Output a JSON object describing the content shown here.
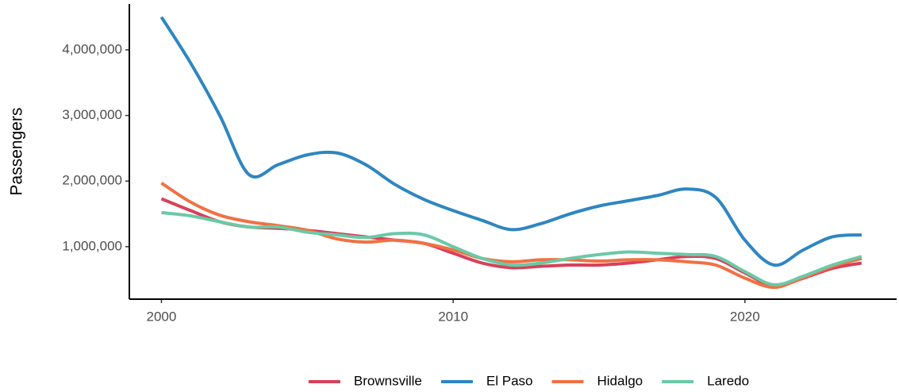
{
  "chart_data": {
    "type": "line",
    "y_label": "Passengers",
    "x": [
      2000,
      2001,
      2002,
      2003,
      2004,
      2005,
      2006,
      2007,
      2008,
      2009,
      2010,
      2011,
      2012,
      2013,
      2014,
      2015,
      2016,
      2017,
      2018,
      2019,
      2020,
      2021,
      2022,
      2023,
      2024
    ],
    "series": [
      {
        "name": "Brownsville",
        "color": "#d7415a",
        "values": [
          1730000,
          1550000,
          1380000,
          1300000,
          1280000,
          1250000,
          1200000,
          1150000,
          1100000,
          1050000,
          900000,
          750000,
          680000,
          700000,
          720000,
          720000,
          750000,
          800000,
          850000,
          820000,
          600000,
          400000,
          520000,
          670000,
          750000
        ]
      },
      {
        "name": "El Paso",
        "color": "#2e86c1",
        "values": [
          4500000,
          3800000,
          3000000,
          2100000,
          2250000,
          2400000,
          2430000,
          2250000,
          1950000,
          1720000,
          1550000,
          1400000,
          1260000,
          1350000,
          1500000,
          1620000,
          1700000,
          1780000,
          1880000,
          1750000,
          1100000,
          720000,
          950000,
          1150000,
          1180000
        ]
      },
      {
        "name": "Hidalgo",
        "color": "#f07144",
        "values": [
          1970000,
          1680000,
          1480000,
          1380000,
          1320000,
          1250000,
          1120000,
          1070000,
          1100000,
          1050000,
          950000,
          820000,
          770000,
          800000,
          800000,
          780000,
          800000,
          800000,
          770000,
          720000,
          520000,
          380000,
          530000,
          700000,
          820000
        ]
      },
      {
        "name": "Laredo",
        "color": "#6ac9a6",
        "values": [
          1520000,
          1470000,
          1380000,
          1300000,
          1300000,
          1220000,
          1180000,
          1140000,
          1200000,
          1180000,
          1000000,
          820000,
          720000,
          750000,
          820000,
          880000,
          920000,
          900000,
          880000,
          850000,
          620000,
          420000,
          550000,
          720000,
          850000
        ]
      }
    ],
    "xlim": [
      1998.9,
      2025.2
    ],
    "xticks": [
      2000,
      2010,
      2020
    ],
    "ylim": [
      200000,
      4700000
    ],
    "yticks": [
      {
        "value": 1000000,
        "label": "1,000,000"
      },
      {
        "value": 2000000,
        "label": "2,000,000"
      },
      {
        "value": 3000000,
        "label": "3,000,000"
      },
      {
        "value": 4000000,
        "label": "4,000,000"
      }
    ],
    "legend": "bottom"
  }
}
